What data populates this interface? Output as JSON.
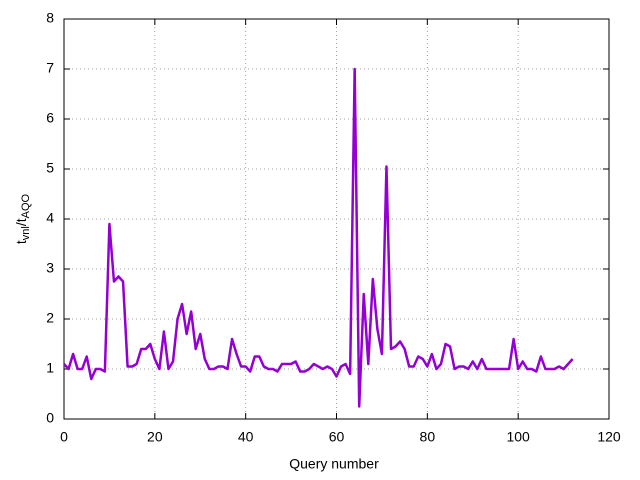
{
  "chart_data": {
    "type": "line",
    "xlabel": "Query number",
    "ylabel_parts": [
      "t",
      "vnl",
      "/t",
      "AQO"
    ],
    "x": [
      0,
      1,
      2,
      3,
      4,
      5,
      6,
      7,
      8,
      9,
      10,
      11,
      12,
      13,
      14,
      15,
      16,
      17,
      18,
      19,
      20,
      21,
      22,
      23,
      24,
      25,
      26,
      27,
      28,
      29,
      30,
      31,
      32,
      33,
      34,
      35,
      36,
      37,
      38,
      39,
      40,
      41,
      42,
      43,
      44,
      45,
      46,
      47,
      48,
      49,
      50,
      51,
      52,
      53,
      54,
      55,
      56,
      57,
      58,
      59,
      60,
      61,
      62,
      63,
      64,
      65,
      66,
      67,
      68,
      69,
      70,
      71,
      72,
      73,
      74,
      75,
      76,
      77,
      78,
      79,
      80,
      81,
      82,
      83,
      84,
      85,
      86,
      87,
      88,
      89,
      90,
      91,
      92,
      93,
      94,
      95,
      96,
      97,
      98,
      99,
      100,
      101,
      102,
      103,
      104,
      105,
      106,
      107,
      108,
      109,
      110,
      111,
      112
    ],
    "series": [
      {
        "color": "#9400d3",
        "values": [
          1.1,
          1.0,
          1.3,
          1.0,
          1.0,
          1.25,
          0.8,
          1.0,
          1.0,
          0.95,
          3.9,
          2.75,
          2.85,
          2.75,
          1.05,
          1.05,
          1.1,
          1.4,
          1.4,
          1.5,
          1.2,
          1.0,
          1.75,
          1.0,
          1.15,
          2.0,
          2.3,
          1.7,
          2.15,
          1.4,
          1.7,
          1.2,
          1.0,
          1.0,
          1.05,
          1.05,
          1.0,
          1.6,
          1.3,
          1.05,
          1.05,
          0.95,
          1.25,
          1.25,
          1.05,
          1.0,
          1.0,
          0.95,
          1.1,
          1.1,
          1.1,
          1.15,
          0.95,
          0.95,
          1.0,
          1.1,
          1.05,
          1.0,
          1.05,
          1.0,
          0.85,
          1.05,
          1.1,
          0.9,
          7.0,
          0.25,
          2.5,
          1.1,
          2.8,
          1.8,
          1.3,
          5.05,
          1.4,
          1.45,
          1.55,
          1.4,
          1.05,
          1.05,
          1.25,
          1.2,
          1.05,
          1.3,
          1.0,
          1.1,
          1.5,
          1.45,
          1.0,
          1.05,
          1.05,
          1.0,
          1.15,
          1.0,
          1.2,
          1.0,
          1.0,
          1.0,
          1.0,
          1.0,
          1.0,
          1.6,
          1.0,
          1.15,
          1.0,
          1.0,
          0.95,
          1.25,
          1.0,
          1.0,
          1.0,
          1.05,
          1.0,
          1.1,
          1.2
        ]
      }
    ],
    "xlim": [
      0,
      120
    ],
    "xticks": [
      0,
      20,
      40,
      60,
      80,
      100,
      120
    ],
    "ylim": [
      0,
      8
    ],
    "yticks": [
      0,
      1,
      2,
      3,
      4,
      5,
      6,
      7,
      8
    ],
    "grid": true
  }
}
